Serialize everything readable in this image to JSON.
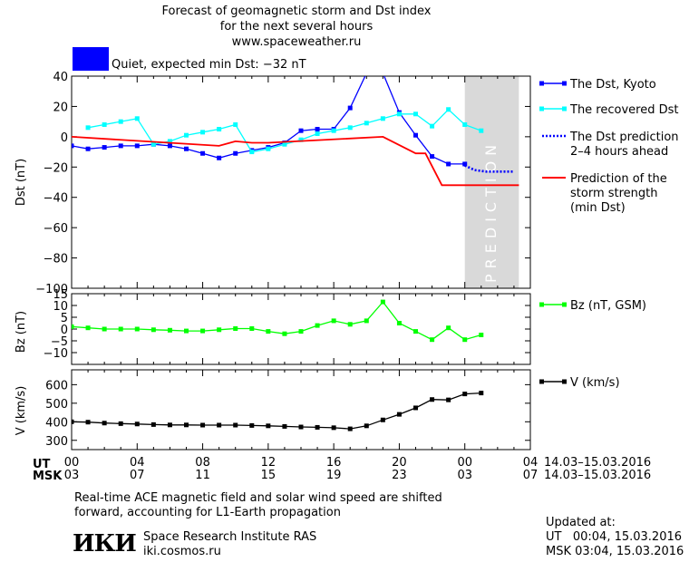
{
  "header": {
    "title_line1": "Forecast of geomagnetic storm and Dst index",
    "title_line2": "for the next several hours",
    "website": "www.spaceweather.ru",
    "status": "Quiet, expected min Dst: −32 nT",
    "status_color": "#0000ff"
  },
  "chart_data": [
    {
      "type": "line",
      "ylabel": "Dst (nT)",
      "ylim": [
        -100,
        40
      ],
      "yticks": [
        40,
        20,
        0,
        -20,
        -40,
        -60,
        -80,
        -100
      ],
      "ytick_labels": [
        "40",
        "20",
        "0",
        "−20",
        "−40",
        "−60",
        "−80",
        "−100"
      ],
      "xlim": [
        0,
        28
      ],
      "prediction_region": [
        24,
        27.3
      ],
      "prediction_label": "PREDICTION",
      "series": [
        {
          "name": "The Dst, Kyoto",
          "color": "#0000ff",
          "style": "solid-square",
          "x": [
            0,
            1,
            2,
            3,
            4,
            5,
            6,
            7,
            8,
            9,
            10,
            11,
            12,
            13,
            14,
            15,
            16,
            17,
            18,
            19,
            20,
            21,
            22,
            23,
            24
          ],
          "y": [
            -6,
            -8,
            -7,
            -6,
            -6,
            -5,
            -6,
            -8,
            -11,
            -14,
            -11,
            -9,
            -7,
            -4,
            4,
            5,
            5,
            19,
            42,
            42,
            16,
            1,
            -13,
            -18,
            -18
          ]
        },
        {
          "name": "The recovered Dst",
          "color": "#00ffff",
          "style": "solid-square",
          "x": [
            1,
            2,
            3,
            4,
            5,
            6,
            7,
            8,
            9,
            10,
            11,
            12,
            13,
            14,
            15,
            16,
            17,
            18,
            19,
            20,
            21,
            22,
            23,
            24,
            25
          ],
          "y": [
            6,
            8,
            10,
            12,
            -5,
            -3,
            1,
            3,
            5,
            8,
            -10,
            -8,
            -5,
            -2,
            2,
            4,
            6,
            9,
            12,
            15,
            15,
            7,
            18,
            8,
            4
          ]
        },
        {
          "name": "The Dst prediction\n2–4 hours ahead",
          "color": "#0000ff",
          "style": "dotted",
          "x": [
            24,
            24.6,
            25.3,
            26,
            26.5,
            27
          ],
          "y": [
            -19,
            -22,
            -23,
            -23,
            -23,
            -23
          ]
        },
        {
          "name": "Prediction of the\nstorm strength\n(min Dst)",
          "color": "#ff0000",
          "style": "step",
          "x": [
            0,
            9,
            10,
            11,
            12,
            19,
            21,
            21.6,
            22.6,
            27.3
          ],
          "y": [
            0,
            -6,
            -3,
            -4,
            -4,
            0,
            -11,
            -11,
            -32,
            -32
          ]
        }
      ]
    },
    {
      "type": "line",
      "ylabel": "Bz (nT)",
      "ylim": [
        -15,
        15
      ],
      "yticks": [
        15,
        10,
        5,
        0,
        -5,
        -10
      ],
      "ytick_labels": [
        "15",
        "10",
        "5",
        "0",
        "−5",
        "−10"
      ],
      "xlim": [
        0,
        28
      ],
      "series": [
        {
          "name": "Bz (nT, GSM)",
          "color": "#00ff00",
          "x": [
            0,
            1,
            2,
            3,
            4,
            5,
            6,
            7,
            8,
            9,
            10,
            11,
            12,
            13,
            14,
            15,
            16,
            17,
            18,
            19,
            20,
            21,
            22,
            23,
            24,
            25
          ],
          "y": [
            1,
            0.5,
            0,
            0,
            0,
            -0.3,
            -0.5,
            -0.8,
            -0.8,
            -0.3,
            0.2,
            0.2,
            -1,
            -2,
            -1,
            1.5,
            3.5,
            2,
            3.5,
            11.5,
            2.5,
            -1,
            -4.5,
            0.5,
            -4.5,
            -2.5
          ]
        }
      ]
    },
    {
      "type": "line",
      "ylabel": "V (km/s)",
      "ylim": [
        250,
        680
      ],
      "yticks": [
        600,
        500,
        400,
        300
      ],
      "ytick_labels": [
        "600",
        "500",
        "400",
        "300"
      ],
      "xlim": [
        0,
        28
      ],
      "series": [
        {
          "name": "V (km/s)",
          "color": "#000000",
          "x": [
            0,
            1,
            2,
            3,
            4,
            5,
            6,
            7,
            8,
            9,
            10,
            11,
            12,
            13,
            14,
            15,
            16,
            17,
            18,
            19,
            20,
            21,
            22,
            23,
            24,
            25
          ],
          "y": [
            400,
            398,
            393,
            390,
            388,
            385,
            383,
            383,
            382,
            382,
            382,
            380,
            378,
            375,
            372,
            370,
            368,
            362,
            378,
            410,
            440,
            475,
            520,
            518,
            550,
            555
          ]
        }
      ]
    }
  ],
  "xaxis": {
    "ut_label": "UT",
    "msk_label": "MSK",
    "ut_ticks": [
      "00",
      "04",
      "08",
      "12",
      "16",
      "20",
      "00",
      "04"
    ],
    "msk_ticks": [
      "03",
      "07",
      "11",
      "15",
      "19",
      "23",
      "03",
      "07"
    ],
    "date_range_ut": "14.03–15.03.2016",
    "date_range_msk": "14.03–15.03.2016"
  },
  "footer": {
    "note_line1": "Real-time ACE magnetic field and solar wind speed are shifted",
    "note_line2": "forward, accounting for L1-Earth propagation",
    "logo_text": "ИКИ",
    "institute": "Space Research Institute RAS",
    "institute_url": "iki.cosmos.ru",
    "updated_label": "Updated at:",
    "updated_ut": "UT   00:04, 15.03.2016",
    "updated_msk": "MSK 03:04, 15.03.2016"
  }
}
